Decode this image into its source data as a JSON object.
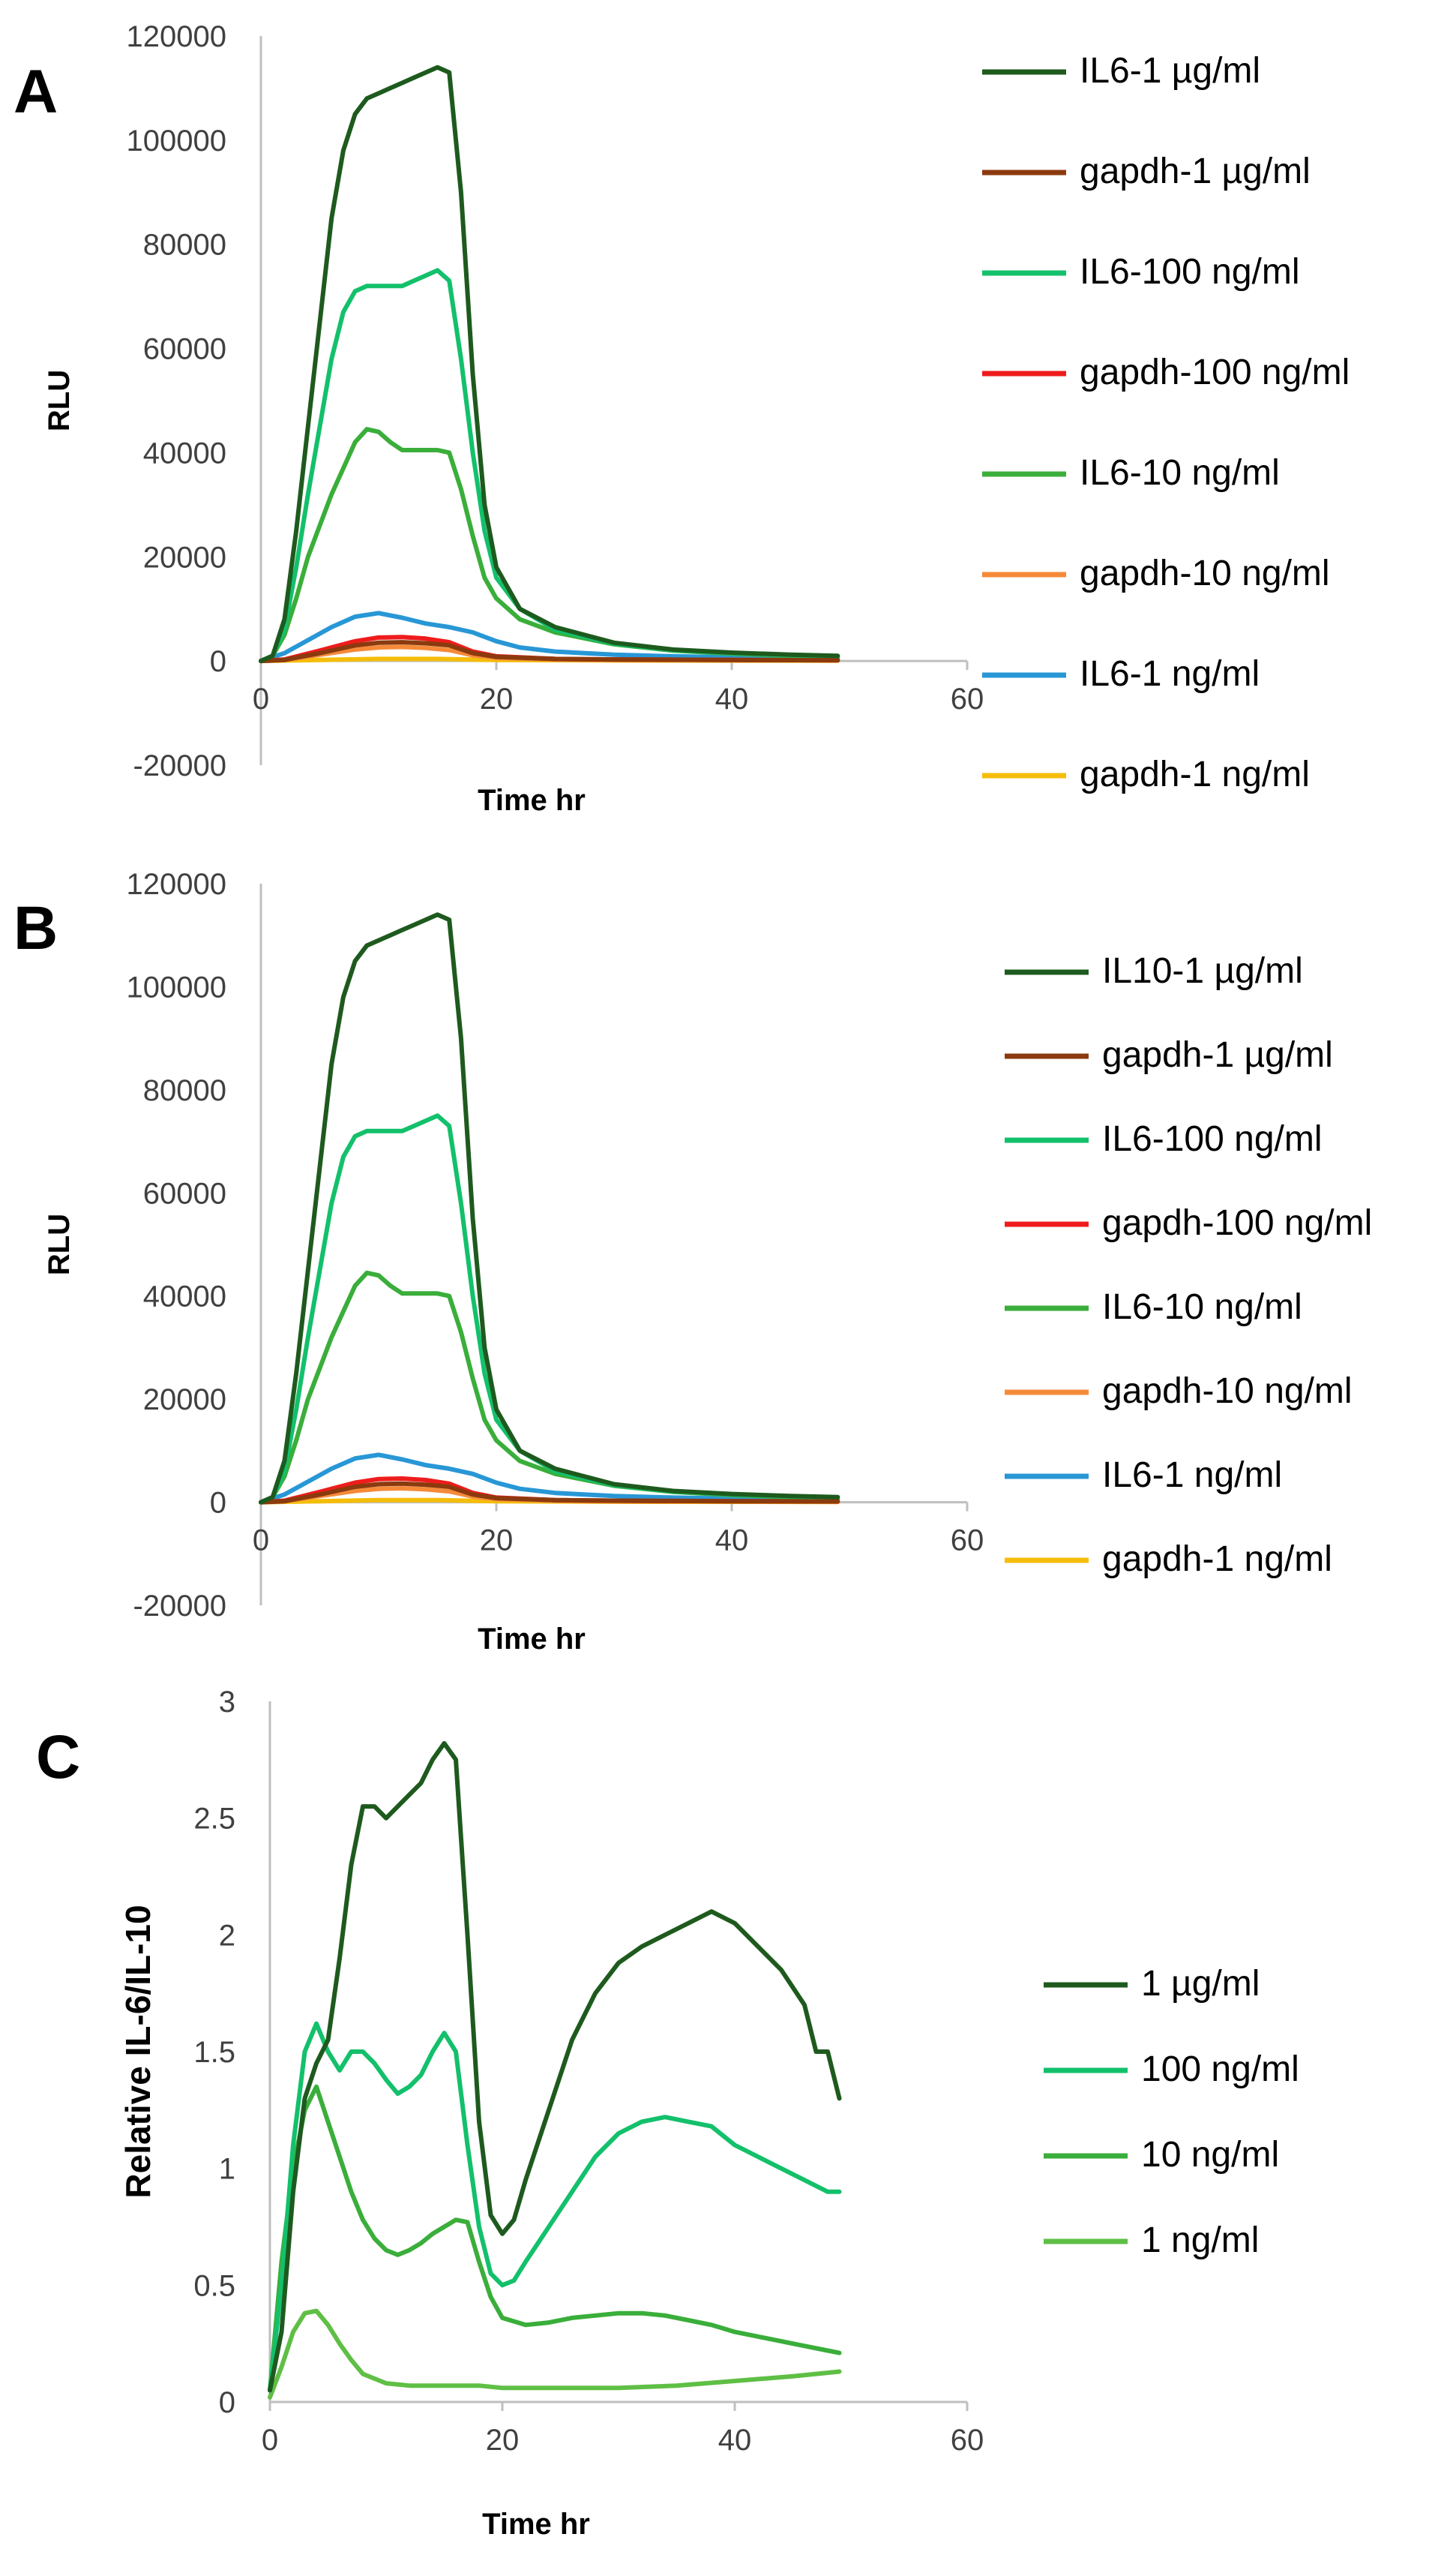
{
  "chart_data": [
    {
      "panel": "A",
      "type": "line",
      "xlabel": "Time hr",
      "ylabel": "RLU",
      "xlim": [
        0,
        60
      ],
      "ylim": [
        -20000,
        120000
      ],
      "xticks": [
        0,
        20,
        40,
        60
      ],
      "yticks": [
        -20000,
        0,
        20000,
        40000,
        60000,
        80000,
        100000,
        120000
      ],
      "legend_position": "right",
      "series": [
        {
          "name": "IL6-1 µg/ml",
          "color": "#1e5a1e",
          "x": [
            0,
            1,
            2,
            3,
            4,
            5,
            6,
            7,
            8,
            9,
            10,
            11,
            12,
            13,
            14,
            15,
            16,
            17,
            18,
            19,
            20,
            22,
            25,
            30,
            35,
            40,
            45,
            49
          ],
          "y": [
            0,
            1000,
            8000,
            25000,
            45000,
            65000,
            85000,
            98000,
            105000,
            108000,
            109000,
            110000,
            111000,
            112000,
            113000,
            114000,
            113000,
            90000,
            55000,
            30000,
            18000,
            10000,
            6500,
            3500,
            2200,
            1600,
            1200,
            1000
          ]
        },
        {
          "name": "gapdh-1 µg/ml",
          "color": "#8b3a0e",
          "x": [
            0,
            2,
            5,
            8,
            10,
            12,
            14,
            16,
            18,
            20,
            25,
            30,
            40,
            49
          ],
          "y": [
            0,
            200,
            1500,
            3000,
            3500,
            3600,
            3400,
            3000,
            1500,
            800,
            400,
            300,
            200,
            150
          ]
        },
        {
          "name": "IL6-100 ng/ml",
          "color": "#13c06b",
          "x": [
            0,
            1,
            2,
            3,
            4,
            5,
            6,
            7,
            8,
            9,
            10,
            11,
            12,
            13,
            14,
            15,
            16,
            17,
            18,
            19,
            20,
            22,
            25,
            30,
            35,
            40,
            45,
            49
          ],
          "y": [
            0,
            1000,
            6000,
            18000,
            32000,
            45000,
            58000,
            67000,
            71000,
            72000,
            72000,
            72000,
            72000,
            73000,
            74000,
            75000,
            73000,
            58000,
            40000,
            25000,
            16000,
            10000,
            6000,
            3300,
            2100,
            1500,
            1100,
            900
          ]
        },
        {
          "name": "gapdh-100 ng/ml",
          "color": "#ee1c1c",
          "x": [
            0,
            2,
            5,
            8,
            10,
            12,
            14,
            16,
            18,
            20,
            25,
            30,
            40,
            49
          ],
          "y": [
            0,
            300,
            2000,
            3800,
            4500,
            4600,
            4300,
            3600,
            1800,
            900,
            400,
            300,
            200,
            150
          ]
        },
        {
          "name": "IL6-10 ng/ml",
          "color": "#3aae3a",
          "x": [
            0,
            1,
            2,
            3,
            4,
            5,
            6,
            7,
            8,
            9,
            10,
            11,
            12,
            13,
            14,
            15,
            16,
            17,
            18,
            19,
            20,
            22,
            25,
            30,
            35,
            40,
            45,
            49
          ],
          "y": [
            0,
            1000,
            5000,
            12000,
            20000,
            26000,
            32000,
            37000,
            42000,
            44500,
            44000,
            42000,
            40500,
            40500,
            40500,
            40500,
            40000,
            33000,
            24000,
            16000,
            12000,
            8000,
            5500,
            3200,
            2000,
            1400,
            1000,
            800
          ]
        },
        {
          "name": "gapdh-10 ng/ml",
          "color": "#f58a3a",
          "x": [
            0,
            2,
            5,
            8,
            10,
            12,
            14,
            16,
            18,
            20,
            25,
            30,
            40,
            49
          ],
          "y": [
            0,
            200,
            1200,
            2200,
            2600,
            2700,
            2500,
            2100,
            1100,
            600,
            300,
            200,
            150,
            100
          ]
        },
        {
          "name": "IL6-1 ng/ml",
          "color": "#2897d6",
          "x": [
            0,
            2,
            4,
            6,
            8,
            10,
            12,
            14,
            16,
            18,
            20,
            22,
            25,
            30,
            35,
            40,
            45,
            49
          ],
          "y": [
            0,
            1500,
            4000,
            6500,
            8500,
            9200,
            8300,
            7200,
            6500,
            5500,
            3800,
            2600,
            1800,
            1200,
            900,
            700,
            600,
            500
          ]
        },
        {
          "name": "gapdh-1 ng/ml",
          "color": "#f5bd0b",
          "x": [
            0,
            5,
            10,
            15,
            20,
            30,
            40,
            49
          ],
          "y": [
            0,
            200,
            400,
            400,
            200,
            100,
            80,
            50
          ]
        }
      ]
    },
    {
      "panel": "B",
      "type": "line",
      "xlabel": "Time hr",
      "ylabel": "RLU",
      "xlim": [
        0,
        60
      ],
      "ylim": [
        -20000,
        120000
      ],
      "xticks": [
        0,
        20,
        40,
        60
      ],
      "yticks": [
        -20000,
        0,
        20000,
        40000,
        60000,
        80000,
        100000,
        120000
      ],
      "legend_position": "right",
      "series": [
        {
          "name": "IL10-1 µg/ml",
          "color": "#1e5a1e",
          "x": [
            0,
            1,
            2,
            3,
            4,
            5,
            6,
            7,
            8,
            9,
            10,
            11,
            12,
            13,
            14,
            15,
            16,
            17,
            18,
            19,
            20,
            22,
            25,
            30,
            35,
            40,
            45,
            49
          ],
          "y": [
            0,
            1000,
            8000,
            25000,
            45000,
            65000,
            85000,
            98000,
            105000,
            108000,
            109000,
            110000,
            111000,
            112000,
            113000,
            114000,
            113000,
            90000,
            55000,
            30000,
            18000,
            10000,
            6500,
            3500,
            2200,
            1600,
            1200,
            1000
          ]
        },
        {
          "name": "gapdh-1 µg/ml",
          "color": "#8b3a0e",
          "x": [
            0,
            2,
            5,
            8,
            10,
            12,
            14,
            16,
            18,
            20,
            25,
            30,
            40,
            49
          ],
          "y": [
            0,
            200,
            1500,
            3000,
            3500,
            3600,
            3400,
            3000,
            1500,
            800,
            400,
            300,
            200,
            150
          ]
        },
        {
          "name": "IL6-100 ng/ml",
          "color": "#13c06b",
          "x": [
            0,
            1,
            2,
            3,
            4,
            5,
            6,
            7,
            8,
            9,
            10,
            11,
            12,
            13,
            14,
            15,
            16,
            17,
            18,
            19,
            20,
            22,
            25,
            30,
            35,
            40,
            45,
            49
          ],
          "y": [
            0,
            1000,
            6000,
            18000,
            32000,
            45000,
            58000,
            67000,
            71000,
            72000,
            72000,
            72000,
            72000,
            73000,
            74000,
            75000,
            73000,
            58000,
            40000,
            25000,
            16000,
            10000,
            6000,
            3300,
            2100,
            1500,
            1100,
            900
          ]
        },
        {
          "name": "gapdh-100 ng/ml",
          "color": "#ee1c1c",
          "x": [
            0,
            2,
            5,
            8,
            10,
            12,
            14,
            16,
            18,
            20,
            25,
            30,
            40,
            49
          ],
          "y": [
            0,
            300,
            2000,
            3800,
            4500,
            4600,
            4300,
            3600,
            1800,
            900,
            400,
            300,
            200,
            150
          ]
        },
        {
          "name": "IL6-10 ng/ml",
          "color": "#3aae3a",
          "x": [
            0,
            1,
            2,
            3,
            4,
            5,
            6,
            7,
            8,
            9,
            10,
            11,
            12,
            13,
            14,
            15,
            16,
            17,
            18,
            19,
            20,
            22,
            25,
            30,
            35,
            40,
            45,
            49
          ],
          "y": [
            0,
            1000,
            5000,
            12000,
            20000,
            26000,
            32000,
            37000,
            42000,
            44500,
            44000,
            42000,
            40500,
            40500,
            40500,
            40500,
            40000,
            33000,
            24000,
            16000,
            12000,
            8000,
            5500,
            3200,
            2000,
            1400,
            1000,
            800
          ]
        },
        {
          "name": "gapdh-10 ng/ml",
          "color": "#f58a3a",
          "x": [
            0,
            2,
            5,
            8,
            10,
            12,
            14,
            16,
            18,
            20,
            25,
            30,
            40,
            49
          ],
          "y": [
            0,
            200,
            1200,
            2200,
            2600,
            2700,
            2500,
            2100,
            1100,
            600,
            300,
            200,
            150,
            100
          ]
        },
        {
          "name": "IL6-1 ng/ml",
          "color": "#2897d6",
          "x": [
            0,
            2,
            4,
            6,
            8,
            10,
            12,
            14,
            16,
            18,
            20,
            22,
            25,
            30,
            35,
            40,
            45,
            49
          ],
          "y": [
            0,
            1500,
            4000,
            6500,
            8500,
            9200,
            8300,
            7200,
            6500,
            5500,
            3800,
            2600,
            1800,
            1200,
            900,
            700,
            600,
            500
          ]
        },
        {
          "name": "gapdh-1 ng/ml",
          "color": "#f5bd0b",
          "x": [
            0,
            5,
            10,
            15,
            20,
            30,
            40,
            49
          ],
          "y": [
            0,
            200,
            400,
            400,
            200,
            100,
            80,
            50
          ]
        }
      ]
    },
    {
      "panel": "C",
      "type": "line",
      "xlabel": "Time hr",
      "ylabel": "Relative IL-6/IL-10",
      "xlim": [
        0,
        60
      ],
      "ylim": [
        0,
        3
      ],
      "xticks": [
        0,
        20,
        40,
        60
      ],
      "yticks": [
        0,
        0.5,
        1,
        1.5,
        2,
        2.5,
        3
      ],
      "legend_position": "right",
      "series": [
        {
          "name": "1 µg/ml",
          "color": "#1e5a1e",
          "x": [
            0,
            1,
            2,
            3,
            4,
            5,
            6,
            7,
            8,
            9,
            10,
            11,
            12,
            13,
            14,
            15,
            16,
            17,
            18,
            19,
            20,
            21,
            22,
            24,
            26,
            28,
            30,
            32,
            34,
            36,
            38,
            40,
            42,
            44,
            46,
            47,
            48,
            49
          ],
          "y": [
            0.05,
            0.3,
            0.9,
            1.3,
            1.45,
            1.55,
            1.9,
            2.3,
            2.55,
            2.55,
            2.5,
            2.55,
            2.6,
            2.65,
            2.75,
            2.82,
            2.75,
            2.0,
            1.2,
            0.8,
            0.72,
            0.78,
            0.95,
            1.25,
            1.55,
            1.75,
            1.88,
            1.95,
            2.0,
            2.05,
            2.1,
            2.05,
            1.95,
            1.85,
            1.7,
            1.5,
            1.5,
            1.3
          ]
        },
        {
          "name": "100 ng/ml",
          "color": "#13c06b",
          "x": [
            0,
            1,
            2,
            3,
            4,
            5,
            6,
            7,
            8,
            9,
            10,
            11,
            12,
            13,
            14,
            15,
            16,
            17,
            18,
            19,
            20,
            21,
            22,
            24,
            26,
            28,
            30,
            32,
            34,
            36,
            38,
            40,
            42,
            44,
            46,
            48,
            49
          ],
          "y": [
            0.05,
            0.5,
            1.1,
            1.5,
            1.62,
            1.5,
            1.42,
            1.5,
            1.5,
            1.45,
            1.38,
            1.32,
            1.35,
            1.4,
            1.5,
            1.58,
            1.5,
            1.1,
            0.75,
            0.55,
            0.5,
            0.52,
            0.6,
            0.75,
            0.9,
            1.05,
            1.15,
            1.2,
            1.22,
            1.2,
            1.18,
            1.1,
            1.05,
            1.0,
            0.95,
            0.9,
            0.9
          ]
        },
        {
          "name": "10 ng/ml",
          "color": "#3aae3a",
          "x": [
            0,
            1,
            2,
            3,
            4,
            5,
            6,
            7,
            8,
            9,
            10,
            11,
            12,
            13,
            14,
            15,
            16,
            17,
            18,
            19,
            20,
            22,
            24,
            26,
            28,
            30,
            32,
            34,
            36,
            38,
            40,
            42,
            44,
            46,
            48,
            49
          ],
          "y": [
            0.05,
            0.6,
            1.0,
            1.25,
            1.35,
            1.2,
            1.05,
            0.9,
            0.78,
            0.7,
            0.65,
            0.63,
            0.65,
            0.68,
            0.72,
            0.75,
            0.78,
            0.77,
            0.6,
            0.45,
            0.36,
            0.33,
            0.34,
            0.36,
            0.37,
            0.38,
            0.38,
            0.37,
            0.35,
            0.33,
            0.3,
            0.28,
            0.26,
            0.24,
            0.22,
            0.21
          ]
        },
        {
          "name": "1 ng/ml",
          "color": "#5fbf45",
          "x": [
            0,
            1,
            2,
            3,
            4,
            5,
            6,
            7,
            8,
            10,
            12,
            14,
            16,
            18,
            20,
            25,
            30,
            35,
            40,
            45,
            49
          ],
          "y": [
            0.02,
            0.15,
            0.3,
            0.38,
            0.39,
            0.33,
            0.25,
            0.18,
            0.12,
            0.08,
            0.07,
            0.07,
            0.07,
            0.07,
            0.06,
            0.06,
            0.06,
            0.07,
            0.09,
            0.11,
            0.13
          ]
        }
      ]
    }
  ],
  "panels": [
    {
      "letter": "A"
    },
    {
      "letter": "B"
    },
    {
      "letter": "C"
    }
  ]
}
